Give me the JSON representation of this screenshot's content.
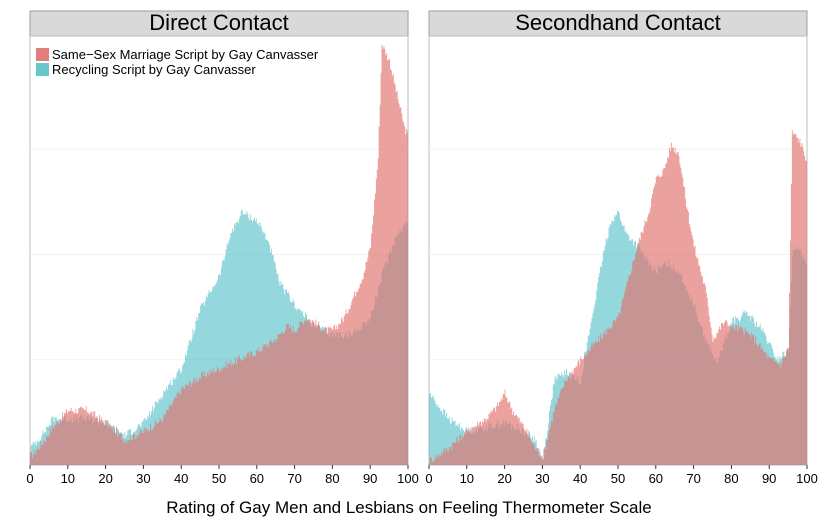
{
  "chart_data": {
    "type": "area",
    "xlabel": "Rating of Gay Men and Lesbians on Feeling Thermometer Scale",
    "ylabel": "",
    "xlim": [
      0,
      100
    ],
    "x_ticks": [
      0,
      10,
      20,
      30,
      40,
      50,
      60,
      70,
      80,
      90,
      100
    ],
    "ylim": [
      0,
      1
    ],
    "y_axis_labels_visible": false,
    "grid": true,
    "legend_position": "top-left",
    "series_colors": {
      "Same−Sex Marriage Script by Gay Canvasser": "#E0706B",
      "Recycling Script by Gay Canvasser": "#4DBCC4"
    },
    "panels": [
      {
        "title": "Direct Contact",
        "series": [
          {
            "name": "Same−Sex Marriage Script by Gay Canvasser",
            "x": [
              0,
              3,
              6,
              10,
              15,
              20,
              25,
              30,
              35,
              40,
              45,
              50,
              55,
              60,
              65,
              68,
              70,
              73,
              75,
              78,
              80,
              83,
              86,
              88,
              90,
              92,
              93,
              95,
              97,
              99,
              100
            ],
            "values": [
              0.02,
              0.05,
              0.09,
              0.13,
              0.13,
              0.1,
              0.06,
              0.08,
              0.11,
              0.18,
              0.21,
              0.23,
              0.25,
              0.27,
              0.3,
              0.33,
              0.32,
              0.35,
              0.34,
              0.32,
              0.32,
              0.35,
              0.41,
              0.45,
              0.52,
              0.73,
              1.0,
              0.96,
              0.88,
              0.8,
              0.78
            ]
          },
          {
            "name": "Recycling Script by Gay Canvasser",
            "x": [
              0,
              3,
              6,
              10,
              15,
              20,
              25,
              30,
              35,
              40,
              45,
              50,
              53,
              56,
              60,
              63,
              66,
              70,
              75,
              80,
              85,
              90,
              93,
              95,
              97,
              100
            ],
            "values": [
              0.04,
              0.07,
              0.11,
              0.11,
              0.11,
              0.1,
              0.07,
              0.1,
              0.17,
              0.23,
              0.37,
              0.45,
              0.55,
              0.6,
              0.58,
              0.53,
              0.43,
              0.38,
              0.33,
              0.31,
              0.31,
              0.35,
              0.45,
              0.5,
              0.55,
              0.58
            ]
          }
        ]
      },
      {
        "title": "Secondhand Contact",
        "series": [
          {
            "name": "Same−Sex Marriage Script by Gay Canvasser",
            "x": [
              0,
              5,
              10,
              15,
              18,
              20,
              22,
              25,
              28,
              30,
              33,
              36,
              40,
              45,
              50,
              55,
              58,
              60,
              62,
              64,
              66,
              68,
              70,
              73,
              75,
              78,
              80,
              83,
              86,
              90,
              93,
              95,
              96,
              98,
              100
            ],
            "values": [
              0.01,
              0.04,
              0.08,
              0.11,
              0.14,
              0.17,
              0.13,
              0.09,
              0.04,
              0.02,
              0.13,
              0.2,
              0.25,
              0.3,
              0.35,
              0.52,
              0.6,
              0.68,
              0.7,
              0.76,
              0.74,
              0.62,
              0.52,
              0.42,
              0.3,
              0.34,
              0.33,
              0.32,
              0.3,
              0.25,
              0.24,
              0.28,
              0.79,
              0.77,
              0.72
            ]
          },
          {
            "name": "Recycling Script by Gay Canvasser",
            "x": [
              0,
              5,
              10,
              15,
              20,
              25,
              28,
              30,
              33,
              36,
              40,
              43,
              46,
              48,
              50,
              52,
              55,
              58,
              60,
              63,
              66,
              70,
              73,
              76,
              80,
              84,
              88,
              92,
              95,
              96,
              98,
              100
            ],
            "values": [
              0.17,
              0.11,
              0.08,
              0.09,
              0.1,
              0.08,
              0.06,
              0.01,
              0.2,
              0.22,
              0.2,
              0.35,
              0.5,
              0.58,
              0.6,
              0.55,
              0.52,
              0.48,
              0.46,
              0.48,
              0.46,
              0.38,
              0.3,
              0.24,
              0.34,
              0.36,
              0.32,
              0.25,
              0.27,
              0.5,
              0.52,
              0.46
            ]
          }
        ]
      }
    ]
  }
}
